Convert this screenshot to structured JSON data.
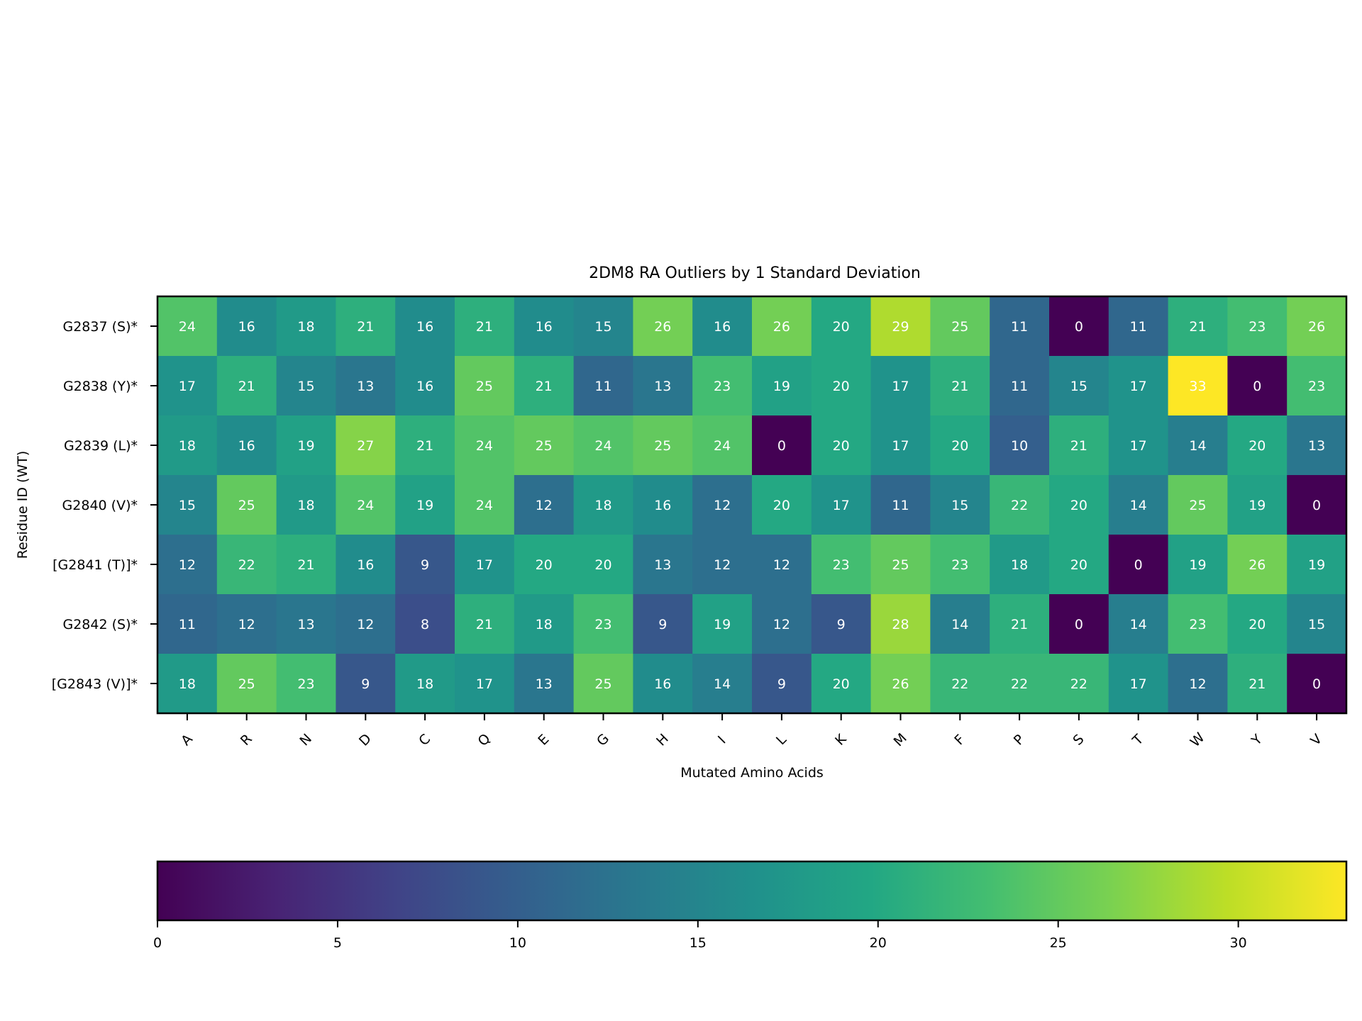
{
  "chart_data": {
    "type": "heatmap",
    "title": "2DM8 RA Outliers by 1 Standard Deviation",
    "xlabel": "Mutated Amino Acids",
    "ylabel": "Residue ID (WT)",
    "x_categories": [
      "A",
      "R",
      "N",
      "D",
      "C",
      "Q",
      "E",
      "G",
      "H",
      "I",
      "L",
      "K",
      "M",
      "F",
      "P",
      "S",
      "T",
      "W",
      "Y",
      "V"
    ],
    "y_categories": [
      "G2837 (S)*",
      "G2838 (Y)*",
      "G2839 (L)*",
      "G2840 (V)*",
      "[G2841 (T)]*",
      "G2842 (S)*",
      "[G2843 (V)]*"
    ],
    "values": [
      [
        24,
        16,
        18,
        21,
        16,
        21,
        16,
        15,
        26,
        16,
        26,
        20,
        29,
        25,
        11,
        0,
        11,
        21,
        23,
        26
      ],
      [
        17,
        21,
        15,
        13,
        16,
        25,
        21,
        11,
        13,
        23,
        19,
        20,
        17,
        21,
        11,
        15,
        17,
        33,
        0,
        23
      ],
      [
        18,
        16,
        19,
        27,
        21,
        24,
        25,
        24,
        25,
        24,
        0,
        20,
        17,
        20,
        10,
        21,
        17,
        14,
        20,
        13
      ],
      [
        15,
        25,
        18,
        24,
        19,
        24,
        12,
        18,
        16,
        12,
        20,
        17,
        11,
        15,
        22,
        20,
        14,
        25,
        19,
        0
      ],
      [
        12,
        22,
        21,
        16,
        9,
        17,
        20,
        20,
        13,
        12,
        12,
        23,
        25,
        23,
        18,
        20,
        0,
        19,
        26,
        19
      ],
      [
        11,
        12,
        13,
        12,
        8,
        21,
        18,
        23,
        9,
        19,
        12,
        9,
        28,
        14,
        21,
        0,
        14,
        23,
        20,
        15
      ],
      [
        18,
        25,
        23,
        9,
        18,
        17,
        13,
        25,
        16,
        14,
        9,
        20,
        26,
        22,
        22,
        22,
        17,
        12,
        21,
        0
      ]
    ],
    "colormap": "viridis",
    "colorbar": {
      "min": 0,
      "max": 33,
      "ticks": [
        0,
        5,
        10,
        15,
        20,
        25,
        30
      ],
      "orientation": "horizontal"
    },
    "grid": false,
    "x_tick_rotation": 45
  }
}
